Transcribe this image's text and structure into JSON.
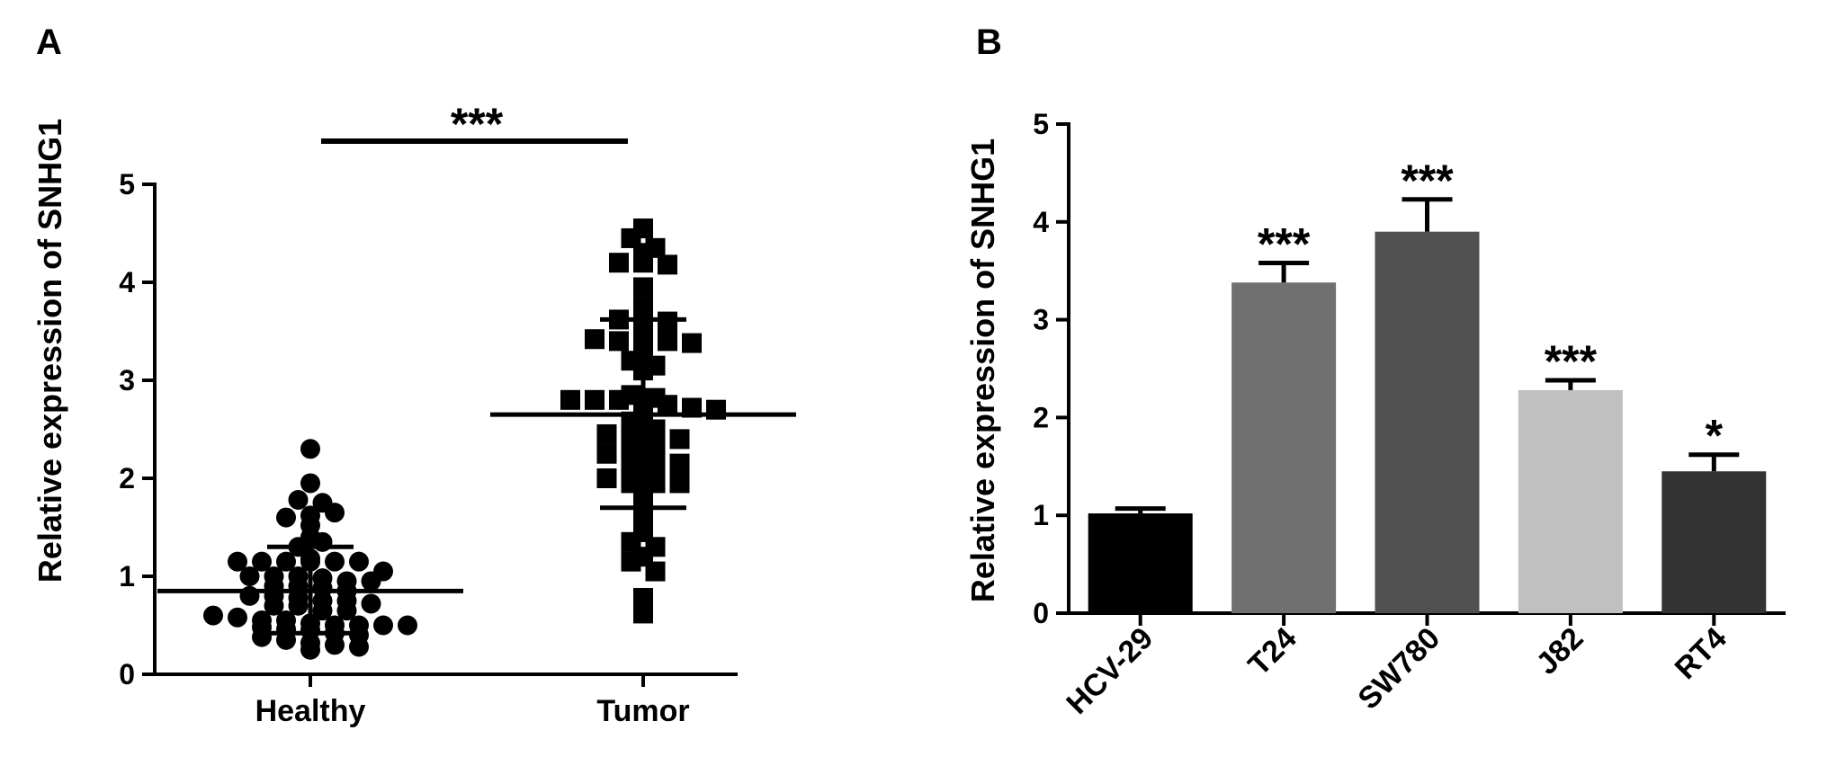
{
  "chart_data": [
    {
      "panel_label": "A",
      "type": "scatter",
      "title": "",
      "xlabel": "",
      "ylabel": "Relative expression of SNHG1",
      "ylim": [
        0,
        5
      ],
      "yticks": [
        0,
        1,
        2,
        3,
        4,
        5
      ],
      "categories": [
        "Healthy",
        "Tumor"
      ],
      "significance": "***",
      "marker_colors": "#000000",
      "groups": [
        {
          "name": "Healthy",
          "marker": "circle",
          "mean": 0.85,
          "sd_low": 0.42,
          "sd_high": 1.3,
          "values": [
            2.3,
            1.95,
            1.78,
            1.6,
            1.52,
            1.4,
            1.3,
            1.18,
            1.15,
            1.15,
            1.15,
            1.15,
            1.15,
            1.15,
            1.05,
            1.0,
            1.0,
            1.0,
            0.98,
            0.95,
            0.95,
            0.9,
            0.9,
            0.88,
            0.85,
            0.8,
            0.8,
            0.78,
            0.75,
            0.75,
            0.72,
            0.7,
            0.7,
            0.65,
            0.65,
            0.6,
            0.58,
            0.55,
            0.55,
            0.52,
            0.5,
            0.5,
            0.48,
            0.46,
            0.45,
            0.42,
            0.4,
            0.38,
            0.35,
            0.32,
            0.3,
            0.28,
            0.25,
            0.5,
            1.35,
            1.62,
            1.75,
            1.65,
            0.5
          ]
        },
        {
          "name": "Tumor",
          "marker": "square",
          "mean": 2.65,
          "sd_low": 1.7,
          "sd_high": 3.62,
          "values": [
            4.55,
            4.45,
            4.35,
            4.3,
            4.2,
            4.2,
            4.18,
            3.95,
            3.75,
            3.62,
            3.6,
            3.6,
            3.42,
            3.4,
            3.4,
            3.4,
            3.38,
            3.35,
            3.2,
            3.15,
            3.1,
            2.85,
            2.82,
            2.8,
            2.8,
            2.8,
            2.78,
            2.75,
            2.72,
            2.7,
            2.6,
            2.58,
            2.5,
            2.45,
            2.42,
            2.4,
            2.4,
            2.35,
            2.3,
            2.25,
            2.2,
            2.2,
            2.15,
            2.1,
            2.05,
            2.0,
            1.95,
            1.95,
            1.95,
            1.78,
            1.6,
            1.5,
            1.45,
            1.35,
            1.3,
            1.2,
            1.15,
            1.05,
            0.78,
            0.62
          ]
        }
      ]
    },
    {
      "panel_label": "B",
      "type": "bar",
      "title": "",
      "xlabel": "",
      "ylabel": "Relative expression of SNHG1",
      "ylim": [
        0,
        5
      ],
      "yticks": [
        0,
        1,
        2,
        3,
        4,
        5
      ],
      "categories": [
        "HCV-29",
        "T24",
        "SW780",
        "J82",
        "RT4"
      ],
      "values": [
        1.02,
        3.38,
        3.9,
        2.28,
        1.45
      ],
      "errors": [
        0.05,
        0.2,
        0.33,
        0.1,
        0.17
      ],
      "significance": [
        "",
        "***",
        "***",
        "***",
        "*"
      ],
      "colors": [
        "#000000",
        "#707070",
        "#505050",
        "#c0c0c0",
        "#333333"
      ]
    }
  ]
}
